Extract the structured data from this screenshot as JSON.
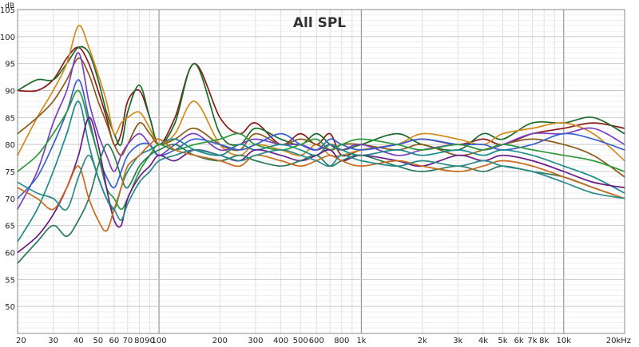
{
  "chart_data": {
    "type": "line",
    "title": "All SPL",
    "ylabel": "dB",
    "xlabel": "",
    "x_scale": "log",
    "xlim": [
      20,
      20000
    ],
    "ylim": [
      45,
      105
    ],
    "grid": true,
    "legend": "none",
    "y_ticks": [
      50,
      55,
      60,
      65,
      70,
      75,
      80,
      85,
      90,
      95,
      100,
      105
    ],
    "x_ticks": [
      {
        "value": 20,
        "label": "20"
      },
      {
        "value": 30,
        "label": "30"
      },
      {
        "value": 40,
        "label": "40"
      },
      {
        "value": 50,
        "label": "50"
      },
      {
        "value": 60,
        "label": "60"
      },
      {
        "value": 70,
        "label": "70"
      },
      {
        "value": 80,
        "label": "80"
      },
      {
        "value": 90,
        "label": "90"
      },
      {
        "value": 100,
        "label": "100"
      },
      {
        "value": 200,
        "label": "200"
      },
      {
        "value": 300,
        "label": "300"
      },
      {
        "value": 400,
        "label": "400"
      },
      {
        "value": 500,
        "label": "500"
      },
      {
        "value": 600,
        "label": "600"
      },
      {
        "value": 800,
        "label": "800"
      },
      {
        "value": 1000,
        "label": "1k"
      },
      {
        "value": 2000,
        "label": "2k"
      },
      {
        "value": 3000,
        "label": "3k"
      },
      {
        "value": 4000,
        "label": "4k"
      },
      {
        "value": 5000,
        "label": "5k"
      },
      {
        "value": 6000,
        "label": "6k"
      },
      {
        "value": 7000,
        "label": "7k"
      },
      {
        "value": 8000,
        "label": "8k"
      },
      {
        "value": 10000,
        "label": "10k"
      },
      {
        "value": 20000,
        "label": "20kHz"
      }
    ],
    "x": [
      20,
      25,
      30,
      35,
      40,
      45,
      50,
      55,
      60,
      65,
      70,
      80,
      90,
      100,
      120,
      150,
      200,
      250,
      300,
      400,
      500,
      600,
      700,
      800,
      1000,
      1500,
      2000,
      3000,
      4000,
      5000,
      7000,
      10000,
      14000,
      20000
    ],
    "series": [
      {
        "color": "#8b1a1a",
        "values": [
          90,
          90,
          92,
          96,
          98,
          95,
          90,
          85,
          80,
          82,
          88,
          90,
          85,
          80,
          85,
          95,
          85,
          82,
          84,
          80,
          82,
          80,
          82,
          78,
          79,
          80,
          81,
          80,
          81,
          80,
          82,
          83,
          84,
          83
        ]
      },
      {
        "color": "#1a6b2a",
        "values": [
          90,
          92,
          92,
          95,
          98,
          97,
          92,
          86,
          82,
          80,
          86,
          91,
          85,
          80,
          84,
          95,
          82,
          80,
          83,
          81,
          80,
          82,
          80,
          79,
          80,
          82,
          80,
          79,
          82,
          81,
          84,
          84,
          85,
          82
        ]
      },
      {
        "color": "#d48a1a",
        "values": [
          78,
          85,
          90,
          95,
          102,
          98,
          93,
          88,
          82,
          84,
          85,
          86,
          83,
          80,
          82,
          88,
          80,
          78,
          80,
          79,
          78,
          80,
          78,
          78,
          79,
          80,
          82,
          81,
          80,
          82,
          83,
          84,
          82,
          77
        ]
      },
      {
        "color": "#8b5a1a",
        "values": [
          82,
          85,
          88,
          92,
          96,
          93,
          88,
          84,
          80,
          78,
          80,
          84,
          82,
          80,
          81,
          83,
          80,
          79,
          82,
          80,
          81,
          80,
          79,
          80,
          80,
          79,
          80,
          78,
          79,
          80,
          81,
          80,
          78,
          74
        ]
      },
      {
        "color": "#7b3fbf",
        "values": [
          68,
          75,
          84,
          90,
          97,
          88,
          82,
          78,
          75,
          78,
          80,
          82,
          80,
          78,
          80,
          82,
          79,
          80,
          81,
          80,
          80,
          79,
          80,
          79,
          80,
          78,
          79,
          80,
          79,
          80,
          82,
          82,
          83,
          80
        ]
      },
      {
        "color": "#3a5fd0",
        "values": [
          70,
          74,
          80,
          86,
          92,
          85,
          78,
          74,
          72,
          75,
          78,
          80,
          80,
          78,
          79,
          81,
          80,
          79,
          80,
          82,
          80,
          79,
          81,
          80,
          79,
          80,
          81,
          80,
          80,
          79,
          80,
          82,
          81,
          79
        ]
      },
      {
        "color": "#1a8a8a",
        "values": [
          62,
          68,
          75,
          82,
          88,
          80,
          74,
          70,
          68,
          72,
          75,
          78,
          79,
          80,
          81,
          79,
          78,
          80,
          79,
          80,
          79,
          78,
          80,
          79,
          78,
          79,
          78,
          79,
          78,
          79,
          78,
          76,
          74,
          71
        ]
      },
      {
        "color": "#2a9a3a",
        "values": [
          75,
          78,
          82,
          86,
          90,
          84,
          78,
          72,
          70,
          68,
          70,
          75,
          78,
          80,
          79,
          80,
          81,
          82,
          80,
          79,
          80,
          81,
          79,
          80,
          81,
          80,
          79,
          80,
          79,
          80,
          79,
          78,
          77,
          75
        ]
      },
      {
        "color": "#6a1a8a",
        "values": [
          60,
          63,
          67,
          72,
          78,
          85,
          80,
          72,
          66,
          65,
          70,
          74,
          76,
          78,
          77,
          79,
          78,
          77,
          79,
          78,
          77,
          78,
          79,
          77,
          78,
          77,
          76,
          78,
          77,
          78,
          77,
          75,
          73,
          72
        ]
      },
      {
        "color": "#2a7a5a",
        "values": [
          58,
          62,
          65,
          63,
          66,
          70,
          76,
          80,
          78,
          74,
          72,
          76,
          78,
          79,
          80,
          78,
          77,
          78,
          77,
          76,
          77,
          78,
          76,
          77,
          78,
          76,
          75,
          76,
          75,
          76,
          75,
          74,
          72,
          70
        ]
      },
      {
        "color": "#c86a1a",
        "values": [
          72,
          70,
          68,
          72,
          76,
          70,
          66,
          64,
          68,
          72,
          76,
          78,
          80,
          81,
          79,
          78,
          77,
          76,
          78,
          77,
          76,
          77,
          78,
          77,
          76,
          77,
          76,
          75,
          76,
          77,
          76,
          74,
          72,
          70
        ]
      },
      {
        "color": "#2a8a8a",
        "values": [
          73,
          71,
          70,
          68,
          74,
          78,
          74,
          70,
          68,
          66,
          69,
          73,
          75,
          77,
          78,
          79,
          78,
          77,
          78,
          79,
          78,
          77,
          76,
          78,
          77,
          76,
          77,
          76,
          77,
          76,
          75,
          73,
          71,
          70
        ]
      }
    ]
  }
}
